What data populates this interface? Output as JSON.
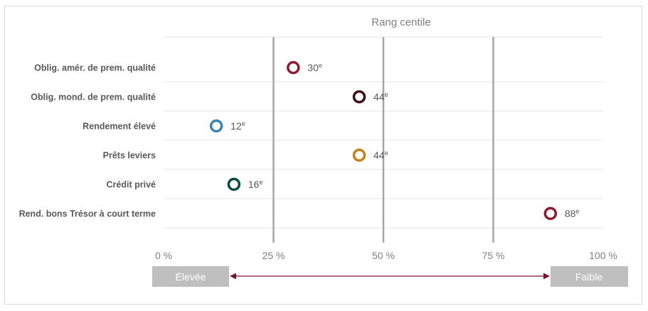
{
  "chart_data": {
    "type": "scatter",
    "title": "Rang centile",
    "xlim": [
      0,
      100
    ],
    "x_ticks": [
      {
        "value": 0,
        "label": "0 %"
      },
      {
        "value": 25,
        "label": "25 %"
      },
      {
        "value": 50,
        "label": "50 %"
      },
      {
        "value": 75,
        "label": "75 %"
      },
      {
        "value": 100,
        "label": "100 %"
      }
    ],
    "reference_lines": [
      25,
      50,
      75
    ],
    "categories": [
      "Oblig. amér. de prem. qualité",
      "Oblig. mond. de prem. qualité",
      "Rendement élevé",
      "Prêts leviers",
      "Crédit privé",
      "Rend. bons Trésor à court terme"
    ],
    "points": [
      {
        "category": "Oblig. amér. de prem. qualité",
        "value": 29.5,
        "label": "30",
        "suffix": "e",
        "color": "#8b1a32"
      },
      {
        "category": "Oblig. mond. de prem. qualité",
        "value": 44.5,
        "label": "44",
        "suffix": "e",
        "color": "#3d0a14"
      },
      {
        "category": "Rendement élevé",
        "value": 12,
        "label": "12",
        "suffix": "e",
        "color": "#3b84b5"
      },
      {
        "category": "Prêts leviers",
        "value": 44.5,
        "label": "44",
        "suffix": "e",
        "color": "#c67f16"
      },
      {
        "category": "Crédit privé",
        "value": 16,
        "label": "16",
        "suffix": "e",
        "color": "#0b4a40"
      },
      {
        "category": "Rend. bons Trésor à court terme",
        "value": 88,
        "label": "88",
        "suffix": "e",
        "color": "#8b1a32"
      }
    ],
    "scale": {
      "low_label": "Élevée",
      "high_label": "Faible",
      "arrow_color": "#7a1530",
      "box_color": "#bfbfbf"
    },
    "colors": {
      "gridline": "#e6e6e6",
      "reference_line": "#a6a6a6"
    }
  }
}
